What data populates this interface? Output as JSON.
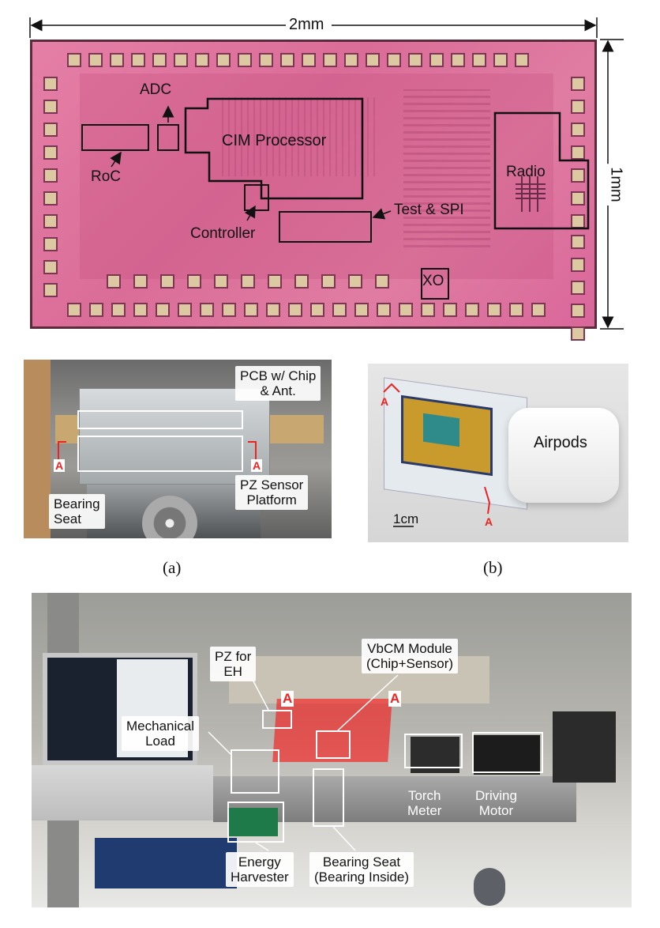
{
  "die": {
    "width_label": "2mm",
    "height_label": "1mm",
    "blocks": {
      "adc": "ADC",
      "roc": "RoC",
      "cim": "CIM Processor",
      "controller": "Controller",
      "test_spi": "Test & SPI",
      "radio": "Radio",
      "xo": "XO"
    }
  },
  "photo_a": {
    "pcb_label": "PCB w/ Chip\n& Ant.",
    "pz_label": "PZ Sensor\nPlatform",
    "bearing_label": "Bearing\nSeat",
    "section_marker": "A",
    "caption": "(a)"
  },
  "photo_b": {
    "airpods_label": "Airpods",
    "scale_label": "1cm",
    "section_marker": "A",
    "caption": "(b)"
  },
  "photo_c": {
    "pz_eh": "PZ for\nEH",
    "vbcm": "VbCM Module\n(Chip+Sensor)",
    "mechanical_load": "Mechanical\nLoad",
    "torch_meter": "Torch\nMeter",
    "driving_motor": "Driving\nMotor",
    "energy_harvester": "Energy\nHarvester",
    "bearing_seat": "Bearing Seat\n(Bearing Inside)",
    "section_marker": "A"
  }
}
